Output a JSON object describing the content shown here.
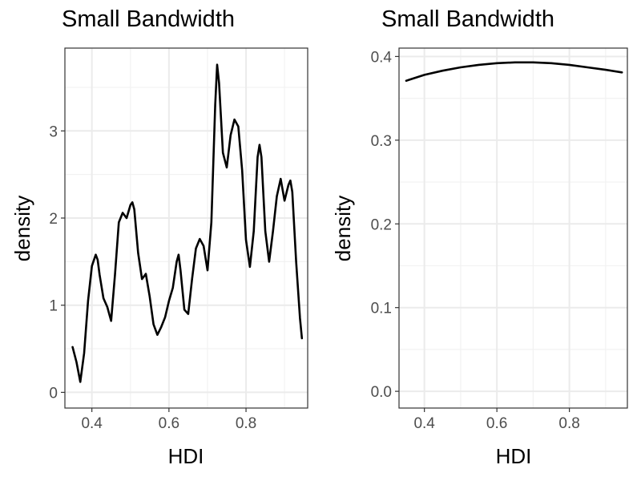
{
  "chart_data": [
    {
      "type": "line",
      "title": "Small Bandwidth",
      "xlabel": "HDI",
      "ylabel": "density",
      "xlim": [
        0.33,
        0.96
      ],
      "ylim": [
        -0.18,
        3.95
      ],
      "xticks": [
        0.4,
        0.6,
        0.8
      ],
      "xtick_labels": [
        "0.4",
        "0.6",
        "0.8"
      ],
      "yticks": [
        0,
        1,
        2,
        3
      ],
      "ytick_labels": [
        "0",
        "1",
        "2",
        "3"
      ],
      "grid": true,
      "series": [
        {
          "x": [
            0.35,
            0.36,
            0.37,
            0.38,
            0.39,
            0.4,
            0.41,
            0.415,
            0.42,
            0.43,
            0.44,
            0.45,
            0.46,
            0.47,
            0.48,
            0.49,
            0.5,
            0.505,
            0.51,
            0.52,
            0.53,
            0.54,
            0.55,
            0.56,
            0.57,
            0.58,
            0.59,
            0.6,
            0.61,
            0.62,
            0.625,
            0.63,
            0.64,
            0.65,
            0.66,
            0.67,
            0.68,
            0.69,
            0.7,
            0.71,
            0.72,
            0.725,
            0.73,
            0.74,
            0.75,
            0.76,
            0.77,
            0.78,
            0.79,
            0.8,
            0.81,
            0.82,
            0.83,
            0.835,
            0.84,
            0.85,
            0.86,
            0.87,
            0.88,
            0.89,
            0.9,
            0.91,
            0.915,
            0.92,
            0.93,
            0.94,
            0.945
          ],
          "values": [
            0.52,
            0.35,
            0.12,
            0.45,
            1.05,
            1.45,
            1.58,
            1.52,
            1.35,
            1.08,
            0.98,
            0.82,
            1.35,
            1.95,
            2.06,
            2.0,
            2.15,
            2.18,
            2.1,
            1.6,
            1.3,
            1.36,
            1.1,
            0.78,
            0.66,
            0.75,
            0.86,
            1.05,
            1.2,
            1.5,
            1.58,
            1.4,
            0.95,
            0.9,
            1.3,
            1.65,
            1.76,
            1.68,
            1.4,
            1.95,
            3.3,
            3.76,
            3.55,
            2.75,
            2.58,
            2.95,
            3.13,
            3.05,
            2.55,
            1.75,
            1.44,
            1.85,
            2.7,
            2.84,
            2.7,
            1.85,
            1.5,
            1.85,
            2.25,
            2.45,
            2.2,
            2.38,
            2.43,
            2.3,
            1.5,
            0.85,
            0.62
          ]
        }
      ]
    },
    {
      "type": "line",
      "title": "Small Bandwidth",
      "xlabel": "HDI",
      "ylabel": "density",
      "xlim": [
        0.33,
        0.96
      ],
      "ylim": [
        -0.02,
        0.41
      ],
      "xticks": [
        0.4,
        0.6,
        0.8
      ],
      "xtick_labels": [
        "0.4",
        "0.6",
        "0.8"
      ],
      "yticks": [
        0,
        0.1,
        0.2,
        0.3,
        0.4
      ],
      "ytick_labels": [
        "0.0",
        "0.1",
        "0.2",
        "0.3",
        "0.4"
      ],
      "grid": true,
      "series": [
        {
          "x": [
            0.35,
            0.4,
            0.45,
            0.5,
            0.55,
            0.6,
            0.65,
            0.7,
            0.75,
            0.8,
            0.85,
            0.9,
            0.945
          ],
          "values": [
            0.371,
            0.378,
            0.383,
            0.387,
            0.39,
            0.392,
            0.393,
            0.393,
            0.392,
            0.39,
            0.387,
            0.384,
            0.381
          ]
        }
      ]
    }
  ]
}
